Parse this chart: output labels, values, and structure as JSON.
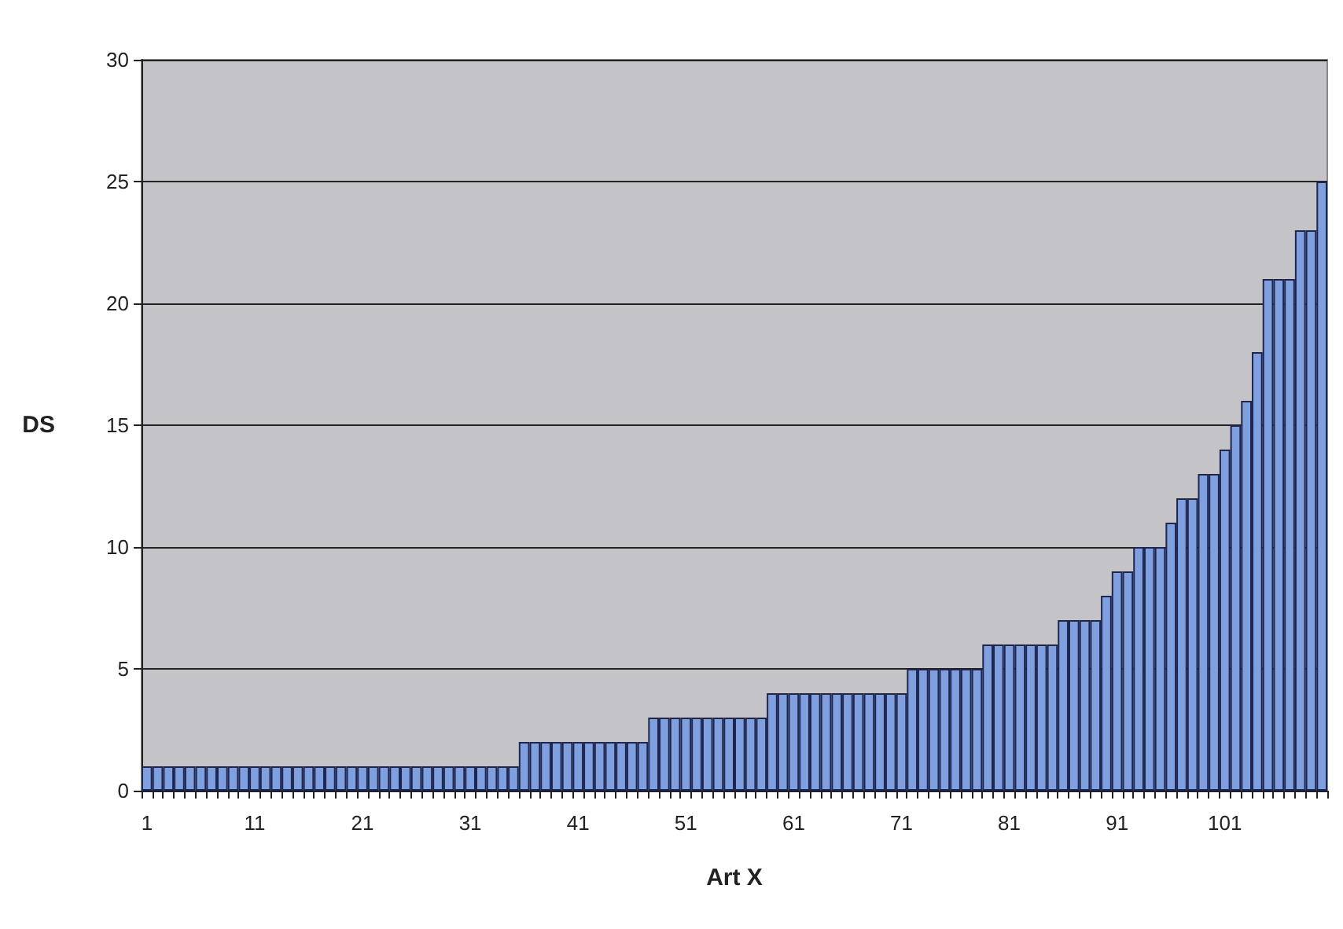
{
  "chart_data": {
    "type": "bar",
    "xlabel": "Art X",
    "ylabel": "DS",
    "categories": [
      "1",
      null,
      null,
      null,
      null,
      null,
      null,
      null,
      null,
      null,
      "11",
      null,
      null,
      null,
      null,
      null,
      null,
      null,
      null,
      null,
      "21",
      null,
      null,
      null,
      null,
      null,
      null,
      null,
      null,
      null,
      "31",
      null,
      null,
      null,
      null,
      null,
      null,
      null,
      null,
      null,
      "41",
      null,
      null,
      null,
      null,
      null,
      null,
      null,
      null,
      null,
      "51",
      null,
      null,
      null,
      null,
      null,
      null,
      null,
      null,
      null,
      "61",
      null,
      null,
      null,
      null,
      null,
      null,
      null,
      null,
      null,
      "71",
      null,
      null,
      null,
      null,
      null,
      null,
      null,
      null,
      null,
      "81",
      null,
      null,
      null,
      null,
      null,
      null,
      null,
      null,
      null,
      "91",
      null,
      null,
      null,
      null,
      null,
      null,
      null,
      null,
      null,
      "101",
      null,
      null,
      null,
      null,
      null,
      null,
      null,
      null,
      null
    ],
    "values": [
      1,
      1,
      1,
      1,
      1,
      1,
      1,
      1,
      1,
      1,
      1,
      1,
      1,
      1,
      1,
      1,
      1,
      1,
      1,
      1,
      1,
      1,
      1,
      1,
      1,
      1,
      1,
      1,
      1,
      1,
      1,
      1,
      1,
      1,
      1,
      2,
      2,
      2,
      2,
      2,
      2,
      2,
      2,
      2,
      2,
      2,
      2,
      3,
      3,
      3,
      3,
      3,
      3,
      3,
      3,
      3,
      3,
      3,
      4,
      4,
      4,
      4,
      4,
      4,
      4,
      4,
      4,
      4,
      4,
      4,
      4,
      5,
      5,
      5,
      5,
      5,
      5,
      5,
      6,
      6,
      6,
      6,
      6,
      6,
      6,
      7,
      7,
      7,
      7,
      8,
      9,
      9,
      10,
      10,
      10,
      11,
      12,
      12,
      13,
      13,
      14,
      15,
      16,
      18,
      21,
      21,
      21,
      23,
      23,
      25
    ],
    "color": "#7f9fdf",
    "ylim": [
      0,
      30
    ],
    "yticks": [
      0,
      5,
      10,
      15,
      20,
      25,
      30
    ],
    "grid": "y"
  }
}
